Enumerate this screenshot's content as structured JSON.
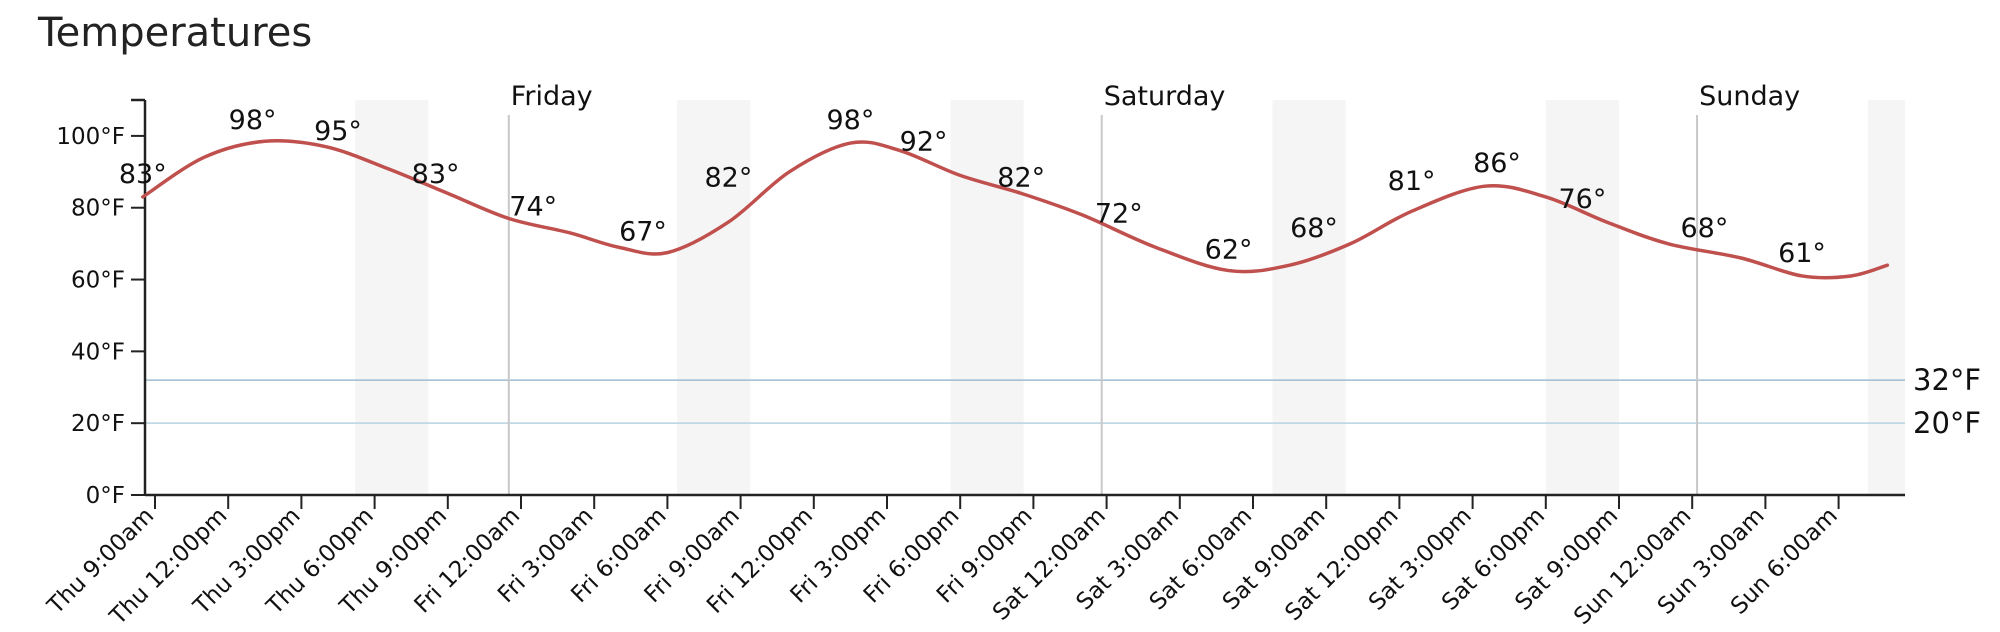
{
  "title": "Temperatures",
  "chart_data": {
    "type": "line",
    "title": "Temperatures",
    "xlabel": "",
    "ylabel": "",
    "ylim": [
      0,
      110
    ],
    "yticks": [
      {
        "value": 0,
        "label": "0°F"
      },
      {
        "value": 20,
        "label": "20°F"
      },
      {
        "value": 40,
        "label": "40°F"
      },
      {
        "value": 60,
        "label": "60°F"
      },
      {
        "value": 80,
        "label": "80°F"
      },
      {
        "value": 100,
        "label": "100°F"
      }
    ],
    "x_unit": "hours since Thu 9:00am",
    "xlim": [
      -0.5,
      69.5
    ],
    "xticks": [
      {
        "x": 0,
        "label": "Thu 9:00am"
      },
      {
        "x": 3,
        "label": "Thu 12:00pm"
      },
      {
        "x": 6,
        "label": "Thu 3:00pm"
      },
      {
        "x": 9,
        "label": "Thu 6:00pm"
      },
      {
        "x": 12,
        "label": "Thu 9:00pm"
      },
      {
        "x": 15,
        "label": "Fri 12:00am"
      },
      {
        "x": 18,
        "label": "Fri 3:00am"
      },
      {
        "x": 21,
        "label": "Fri 6:00am"
      },
      {
        "x": 24,
        "label": "Fri 9:00am"
      },
      {
        "x": 27,
        "label": "Fri 12:00pm"
      },
      {
        "x": 30,
        "label": "Fri 3:00pm"
      },
      {
        "x": 33,
        "label": "Fri 6:00pm"
      },
      {
        "x": 36,
        "label": "Fri 9:00pm"
      },
      {
        "x": 39,
        "label": "Sat 12:00am"
      },
      {
        "x": 42,
        "label": "Sat 3:00am"
      },
      {
        "x": 45,
        "label": "Sat 6:00am"
      },
      {
        "x": 48,
        "label": "Sat 9:00am"
      },
      {
        "x": 51,
        "label": "Sat 12:00pm"
      },
      {
        "x": 54,
        "label": "Sat 3:00pm"
      },
      {
        "x": 57,
        "label": "Sat 6:00pm"
      },
      {
        "x": 60,
        "label": "Sat 9:00pm"
      },
      {
        "x": 63,
        "label": "Sun 12:00am"
      },
      {
        "x": 66,
        "label": "Sun 3:00am"
      },
      {
        "x": 69,
        "label": "Sun 6:00am"
      }
    ],
    "day_dividers": [
      {
        "x": 14.5,
        "label": "Friday"
      },
      {
        "x": 38.8,
        "label": "Saturday"
      },
      {
        "x": 63.2,
        "label": "Sunday"
      }
    ],
    "night_bands": [
      [
        8.2,
        11.2
      ],
      [
        21.4,
        24.4
      ],
      [
        32.6,
        35.6
      ],
      [
        45.8,
        48.8
      ],
      [
        57.0,
        60.0
      ],
      [
        70.2,
        73.2
      ]
    ],
    "reference_lines": [
      {
        "value": 32,
        "label": "32°F",
        "color": "#9cbcd0"
      },
      {
        "value": 20,
        "label": "20°F",
        "color": "#b8d3e0"
      }
    ],
    "series": [
      {
        "color": "#c0504d",
        "points": [
          {
            "x": -0.5,
            "y": 83
          },
          {
            "x": 2,
            "y": 94
          },
          {
            "x": 4.5,
            "y": 98.5
          },
          {
            "x": 7,
            "y": 97
          },
          {
            "x": 9.5,
            "y": 91
          },
          {
            "x": 12,
            "y": 84
          },
          {
            "x": 14.5,
            "y": 77
          },
          {
            "x": 17,
            "y": 73
          },
          {
            "x": 19,
            "y": 69
          },
          {
            "x": 21,
            "y": 67.5
          },
          {
            "x": 23.5,
            "y": 76
          },
          {
            "x": 26,
            "y": 90
          },
          {
            "x": 28.5,
            "y": 98
          },
          {
            "x": 30.5,
            "y": 96
          },
          {
            "x": 33,
            "y": 89
          },
          {
            "x": 35.5,
            "y": 84
          },
          {
            "x": 38,
            "y": 78
          },
          {
            "x": 41,
            "y": 69
          },
          {
            "x": 44,
            "y": 62.5
          },
          {
            "x": 46.5,
            "y": 64
          },
          {
            "x": 49,
            "y": 70
          },
          {
            "x": 51.5,
            "y": 79
          },
          {
            "x": 54.5,
            "y": 86
          },
          {
            "x": 57,
            "y": 83
          },
          {
            "x": 59.5,
            "y": 76
          },
          {
            "x": 62,
            "y": 70
          },
          {
            "x": 65,
            "y": 66
          },
          {
            "x": 67.5,
            "y": 61
          },
          {
            "x": 69.5,
            "y": 61
          },
          {
            "x": 71,
            "y": 64
          }
        ]
      }
    ],
    "point_labels": [
      {
        "x": -0.5,
        "y": 83,
        "label": "83°"
      },
      {
        "x": 4,
        "y": 98,
        "label": "98°"
      },
      {
        "x": 7.5,
        "y": 95,
        "label": "95°"
      },
      {
        "x": 11.5,
        "y": 83,
        "label": "83°"
      },
      {
        "x": 15.5,
        "y": 74,
        "label": "74°"
      },
      {
        "x": 20,
        "y": 67,
        "label": "67°"
      },
      {
        "x": 23.5,
        "y": 82,
        "label": "82°"
      },
      {
        "x": 28.5,
        "y": 98,
        "label": "98°"
      },
      {
        "x": 31.5,
        "y": 92,
        "label": "92°"
      },
      {
        "x": 35.5,
        "y": 82,
        "label": "82°"
      },
      {
        "x": 39.5,
        "y": 72,
        "label": "72°"
      },
      {
        "x": 44,
        "y": 62,
        "label": "62°"
      },
      {
        "x": 47.5,
        "y": 68,
        "label": "68°"
      },
      {
        "x": 51.5,
        "y": 81,
        "label": "81°"
      },
      {
        "x": 55,
        "y": 86,
        "label": "86°"
      },
      {
        "x": 58.5,
        "y": 76,
        "label": "76°"
      },
      {
        "x": 63.5,
        "y": 68,
        "label": "68°"
      },
      {
        "x": 67.5,
        "y": 61,
        "label": "61°"
      }
    ]
  }
}
